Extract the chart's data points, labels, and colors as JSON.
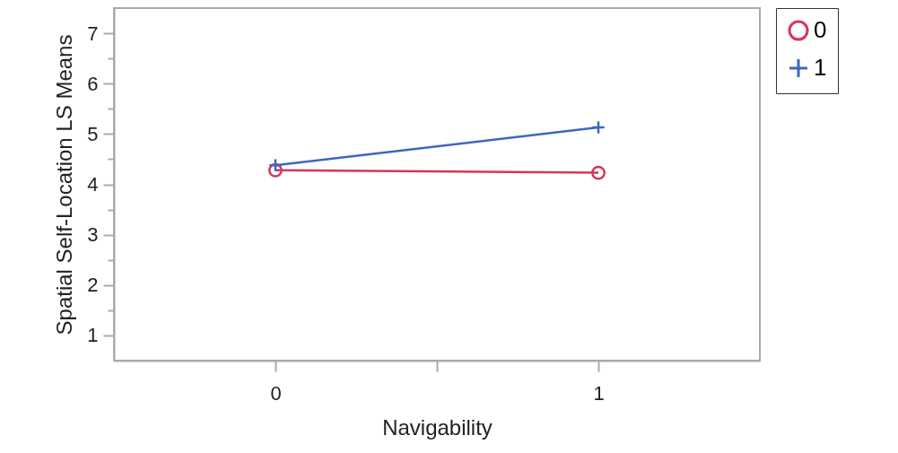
{
  "chart_data": {
    "type": "line",
    "xlabel": "Navigability",
    "ylabel": "Spatial Self-Location LS Means",
    "x": [
      0,
      1
    ],
    "series": [
      {
        "name": "0",
        "color": "#d6365a",
        "values": [
          4.28,
          4.23
        ],
        "marker": "circle"
      },
      {
        "name": "1",
        "color": "#3f66c0",
        "values": [
          4.38,
          5.13
        ],
        "marker": "cross"
      }
    ],
    "xlim": [
      -0.5,
      1.5
    ],
    "xticks": [
      0,
      {
        "value": 0.5,
        "label": null
      },
      1
    ],
    "ylim": [
      0.5,
      7.5
    ],
    "yticks": [
      1,
      {
        "value": 1.5,
        "label": null
      },
      2,
      {
        "value": 2.5,
        "label": null
      },
      3,
      {
        "value": 3.5,
        "label": null
      },
      4,
      {
        "value": 4.5,
        "label": null
      },
      5,
      {
        "value": 5.5,
        "label": null
      },
      6,
      {
        "value": 6.5,
        "label": null
      },
      7
    ],
    "grid": false,
    "legend": "top right"
  }
}
